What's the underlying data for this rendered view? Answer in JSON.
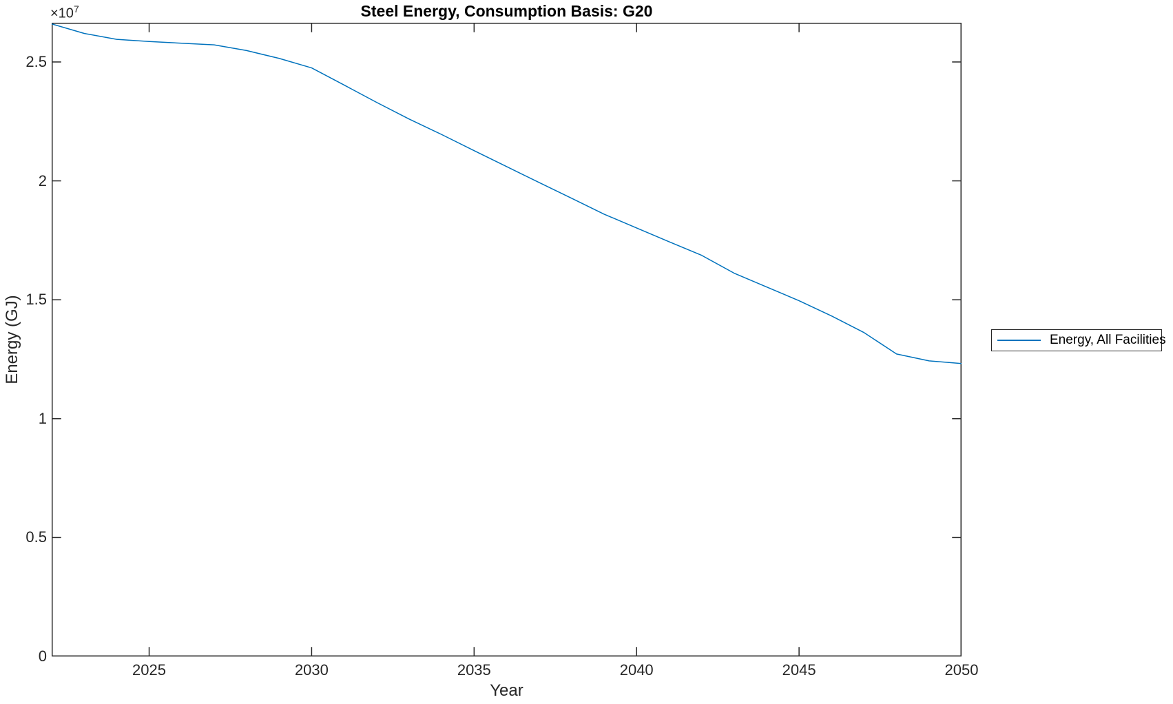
{
  "chart_data": {
    "type": "line",
    "title": "Steel Energy, Consumption Basis: G20",
    "xlabel": "Year",
    "ylabel": "Energy (GJ)",
    "y_axis_multiplier": {
      "base": "×10",
      "exponent": "7"
    },
    "grid": false,
    "legend": {
      "entries": [
        "Energy, All Facilities"
      ],
      "position": "right-outside"
    },
    "xlim": [
      2022,
      2050
    ],
    "ylim": [
      0,
      26650000
    ],
    "xticks": [
      2025,
      2030,
      2035,
      2040,
      2045,
      2050
    ],
    "ytick_values": [
      0,
      5000000,
      10000000,
      15000000,
      20000000,
      25000000
    ],
    "ytick_labels": [
      "0",
      "0.5",
      "1",
      "1.5",
      "2",
      "2.5"
    ],
    "x": [
      2022,
      2023,
      2024,
      2025,
      2026,
      2027,
      2028,
      2029,
      2030,
      2031,
      2032,
      2033,
      2034,
      2035,
      2036,
      2037,
      2038,
      2039,
      2040,
      2041,
      2042,
      2043,
      2044,
      2045,
      2046,
      2047,
      2048,
      2049,
      2050
    ],
    "series": [
      {
        "name": "Energy, All Facilities",
        "color": "#0072BD",
        "values": [
          26600000,
          26200000,
          25950000,
          25860000,
          25790000,
          25720000,
          25480000,
          25150000,
          24750000,
          24030000,
          23300000,
          22600000,
          21950000,
          21270000,
          20600000,
          19930000,
          19270000,
          18600000,
          18020000,
          17440000,
          16870000,
          16120000,
          15540000,
          14960000,
          14320000,
          13620000,
          12720000,
          12430000,
          12320000
        ]
      }
    ],
    "axis_color": "#262626",
    "plot_background": "#ffffff"
  }
}
